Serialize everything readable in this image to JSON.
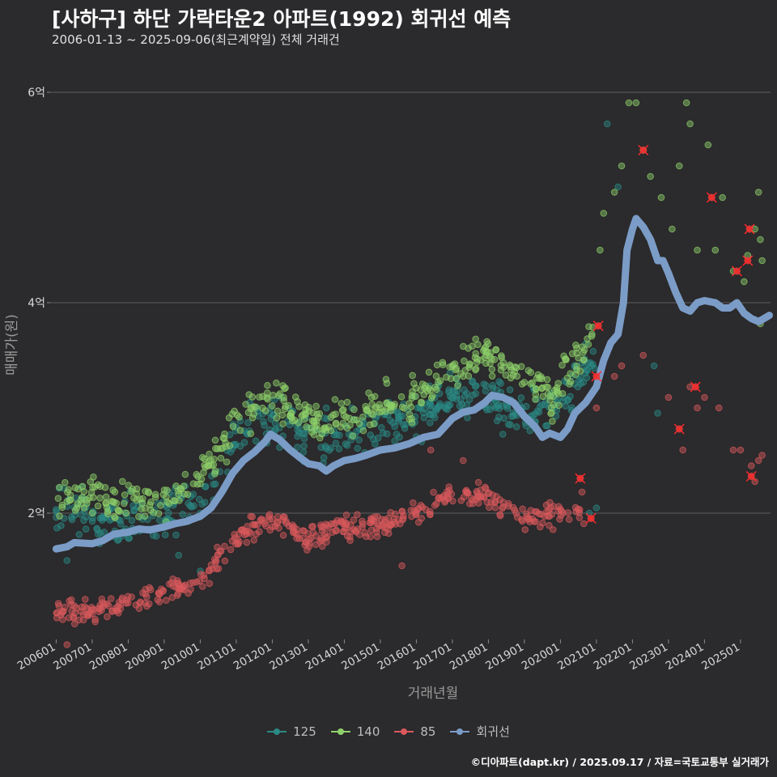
{
  "header": {
    "title": "[사하구] 하단 가락타운2 아파트(1992) 회귀선 예측",
    "subtitle": "2006-01-13 ~ 2025-09-06(최근계약일) 전체 거래건"
  },
  "caption": "©디아파트(dapt.kr) / 2025.09.17 / 자료=국토교통부 실거래가",
  "chart_data": {
    "type": "scatter",
    "xlabel": "거래년월",
    "ylabel": "매매가(원)",
    "x_range": [
      "2005-11-01",
      "2025-11-01"
    ],
    "ylim": [
      0.8,
      6.4
    ],
    "y_ticks": [
      {
        "value": 2,
        "label": "2억"
      },
      {
        "value": 4,
        "label": "4억"
      },
      {
        "value": 6,
        "label": "6억"
      }
    ],
    "x_ticks": [
      "200601",
      "200701",
      "200801",
      "200901",
      "201001",
      "201101",
      "201201",
      "201301",
      "201401",
      "201501",
      "201601",
      "201701",
      "201801",
      "201901",
      "202001",
      "202101",
      "202201",
      "202301",
      "202401",
      "202501"
    ],
    "grid": true,
    "legend_position": "bottom",
    "series": [
      {
        "name": "125",
        "color": "#2a8a84",
        "trend": [
          [
            2006.0,
            2.05
          ],
          [
            2007.5,
            1.95
          ],
          [
            2009.0,
            1.95
          ],
          [
            2010.0,
            2.1
          ],
          [
            2011.2,
            2.8
          ],
          [
            2012.0,
            2.9
          ],
          [
            2013.0,
            2.7
          ],
          [
            2014.0,
            2.75
          ],
          [
            2015.0,
            2.8
          ],
          [
            2016.0,
            2.9
          ],
          [
            2017.0,
            3.1
          ],
          [
            2018.0,
            3.1
          ],
          [
            2019.0,
            2.9
          ],
          [
            2019.8,
            3.0
          ],
          [
            2020.5,
            3.3
          ],
          [
            2021.0,
            3.5
          ]
        ],
        "spread": 0.3,
        "outliers": [
          [
            2006.3,
            1.55
          ],
          [
            2009.4,
            1.6
          ],
          [
            2010.0,
            1.45
          ],
          [
            2013.5,
            3.0
          ],
          [
            2016.6,
            3.2
          ],
          [
            2018.4,
            2.75
          ],
          [
            2020.8,
            2.0
          ],
          [
            2021.0,
            2.05
          ],
          [
            2021.3,
            5.7
          ],
          [
            2021.6,
            5.1
          ],
          [
            2022.6,
            3.4
          ],
          [
            2022.7,
            2.95
          ]
        ]
      },
      {
        "name": "140",
        "color": "#8fd16a",
        "trend": [
          [
            2006.0,
            2.15
          ],
          [
            2007.5,
            2.15
          ],
          [
            2009.0,
            2.1
          ],
          [
            2010.0,
            2.3
          ],
          [
            2011.2,
            2.95
          ],
          [
            2012.0,
            3.1
          ],
          [
            2013.0,
            2.9
          ],
          [
            2014.0,
            2.9
          ],
          [
            2015.0,
            3.0
          ],
          [
            2016.0,
            3.1
          ],
          [
            2017.0,
            3.4
          ],
          [
            2018.0,
            3.5
          ],
          [
            2019.0,
            3.3
          ],
          [
            2019.8,
            3.1
          ],
          [
            2020.5,
            3.5
          ],
          [
            2021.0,
            3.8
          ]
        ],
        "spread": 0.28,
        "outliers": [
          [
            2021.1,
            4.5
          ],
          [
            2021.2,
            4.85
          ],
          [
            2021.5,
            5.05
          ],
          [
            2021.7,
            5.3
          ],
          [
            2021.9,
            5.9
          ],
          [
            2022.1,
            5.9
          ],
          [
            2022.3,
            5.45
          ],
          [
            2022.5,
            5.2
          ],
          [
            2022.8,
            5.0
          ],
          [
            2023.1,
            4.7
          ],
          [
            2023.3,
            5.3
          ],
          [
            2023.5,
            5.9
          ],
          [
            2023.6,
            5.7
          ],
          [
            2023.8,
            4.5
          ],
          [
            2024.1,
            5.5
          ],
          [
            2024.3,
            4.5
          ],
          [
            2024.5,
            5.0
          ],
          [
            2024.8,
            4.3
          ],
          [
            2025.1,
            4.2
          ],
          [
            2025.2,
            4.45
          ],
          [
            2025.4,
            4.7
          ],
          [
            2025.5,
            5.05
          ],
          [
            2025.55,
            4.6
          ],
          [
            2025.6,
            4.4
          ],
          [
            2025.55,
            3.8
          ]
        ]
      },
      {
        "name": "85",
        "color": "#d9595c",
        "trend": [
          [
            2006.0,
            1.05
          ],
          [
            2007.0,
            1.05
          ],
          [
            2008.0,
            1.15
          ],
          [
            2009.0,
            1.25
          ],
          [
            2010.0,
            1.35
          ],
          [
            2011.0,
            1.75
          ],
          [
            2012.0,
            1.95
          ],
          [
            2013.0,
            1.75
          ],
          [
            2014.0,
            1.85
          ],
          [
            2015.0,
            1.9
          ],
          [
            2016.0,
            2.0
          ],
          [
            2017.0,
            2.2
          ],
          [
            2018.0,
            2.15
          ],
          [
            2019.0,
            1.95
          ],
          [
            2020.0,
            2.0
          ],
          [
            2020.6,
            2.0
          ]
        ],
        "spread": 0.16,
        "outliers": [
          [
            2006.3,
            0.75
          ],
          [
            2015.6,
            1.5
          ],
          [
            2016.4,
            2.6
          ],
          [
            2017.3,
            2.5
          ],
          [
            2020.6,
            2.2
          ],
          [
            2020.65,
            1.9
          ],
          [
            2021.0,
            3.0
          ],
          [
            2021.5,
            3.3
          ],
          [
            2021.7,
            3.4
          ],
          [
            2022.3,
            3.5
          ],
          [
            2023.0,
            3.1
          ],
          [
            2023.4,
            2.6
          ],
          [
            2023.6,
            3.2
          ],
          [
            2023.8,
            3.0
          ],
          [
            2024.0,
            3.1
          ],
          [
            2024.4,
            3.0
          ],
          [
            2024.8,
            2.6
          ],
          [
            2025.0,
            2.6
          ],
          [
            2025.3,
            2.45
          ],
          [
            2025.5,
            2.5
          ],
          [
            2025.6,
            2.55
          ],
          [
            2025.4,
            2.3
          ]
        ]
      },
      {
        "name": "회귀선",
        "color": "#7b9cc7",
        "line": [
          [
            2006.0,
            1.66
          ],
          [
            2006.3,
            1.68
          ],
          [
            2006.5,
            1.72
          ],
          [
            2007.0,
            1.71
          ],
          [
            2007.3,
            1.74
          ],
          [
            2007.6,
            1.8
          ],
          [
            2008.0,
            1.82
          ],
          [
            2008.3,
            1.85
          ],
          [
            2008.6,
            1.84
          ],
          [
            2009.0,
            1.87
          ],
          [
            2009.3,
            1.9
          ],
          [
            2009.6,
            1.92
          ],
          [
            2010.0,
            1.97
          ],
          [
            2010.3,
            2.05
          ],
          [
            2010.6,
            2.2
          ],
          [
            2010.9,
            2.38
          ],
          [
            2011.2,
            2.5
          ],
          [
            2011.5,
            2.58
          ],
          [
            2011.8,
            2.68
          ],
          [
            2011.95,
            2.75
          ],
          [
            2012.2,
            2.7
          ],
          [
            2012.5,
            2.6
          ],
          [
            2012.8,
            2.52
          ],
          [
            2013.0,
            2.47
          ],
          [
            2013.3,
            2.45
          ],
          [
            2013.5,
            2.4
          ],
          [
            2013.7,
            2.45
          ],
          [
            2014.0,
            2.5
          ],
          [
            2014.3,
            2.52
          ],
          [
            2014.6,
            2.55
          ],
          [
            2015.0,
            2.6
          ],
          [
            2015.4,
            2.62
          ],
          [
            2015.8,
            2.66
          ],
          [
            2016.2,
            2.72
          ],
          [
            2016.6,
            2.75
          ],
          [
            2017.0,
            2.9
          ],
          [
            2017.3,
            2.96
          ],
          [
            2017.6,
            2.98
          ],
          [
            2017.9,
            3.05
          ],
          [
            2018.1,
            3.12
          ],
          [
            2018.4,
            3.1
          ],
          [
            2018.7,
            3.05
          ],
          [
            2019.0,
            2.92
          ],
          [
            2019.3,
            2.82
          ],
          [
            2019.5,
            2.72
          ],
          [
            2019.7,
            2.76
          ],
          [
            2020.0,
            2.72
          ],
          [
            2020.2,
            2.8
          ],
          [
            2020.4,
            2.95
          ],
          [
            2020.7,
            3.05
          ],
          [
            2021.0,
            3.2
          ],
          [
            2021.2,
            3.45
          ],
          [
            2021.4,
            3.62
          ],
          [
            2021.6,
            3.7
          ],
          [
            2021.75,
            4.0
          ],
          [
            2021.85,
            4.5
          ],
          [
            2022.0,
            4.7
          ],
          [
            2022.1,
            4.8
          ],
          [
            2022.3,
            4.72
          ],
          [
            2022.5,
            4.6
          ],
          [
            2022.7,
            4.4
          ],
          [
            2022.85,
            4.4
          ],
          [
            2023.0,
            4.28
          ],
          [
            2023.2,
            4.1
          ],
          [
            2023.4,
            3.95
          ],
          [
            2023.6,
            3.92
          ],
          [
            2023.8,
            4.0
          ],
          [
            2024.0,
            4.02
          ],
          [
            2024.3,
            4.0
          ],
          [
            2024.5,
            3.95
          ],
          [
            2024.7,
            3.95
          ],
          [
            2024.9,
            4.0
          ],
          [
            2025.1,
            3.9
          ],
          [
            2025.3,
            3.85
          ],
          [
            2025.5,
            3.82
          ],
          [
            2025.7,
            3.86
          ],
          [
            2025.8,
            3.88
          ]
        ]
      }
    ],
    "flagged_points": [
      [
        2021.0,
        3.3
      ],
      [
        2021.05,
        3.78
      ],
      [
        2020.55,
        2.33
      ],
      [
        2020.85,
        1.95
      ],
      [
        2022.3,
        5.45
      ],
      [
        2023.3,
        2.8
      ],
      [
        2023.75,
        3.2
      ],
      [
        2024.2,
        5.0
      ],
      [
        2024.9,
        4.3
      ],
      [
        2025.2,
        4.4
      ],
      [
        2025.25,
        4.7
      ],
      [
        2025.3,
        2.35
      ]
    ]
  },
  "legend": [
    {
      "label": "125",
      "color": "#2a8a84"
    },
    {
      "label": "140",
      "color": "#8fd16a"
    },
    {
      "label": "85",
      "color": "#d9595c"
    },
    {
      "label": "회귀선",
      "color": "#7b9cc7"
    }
  ]
}
